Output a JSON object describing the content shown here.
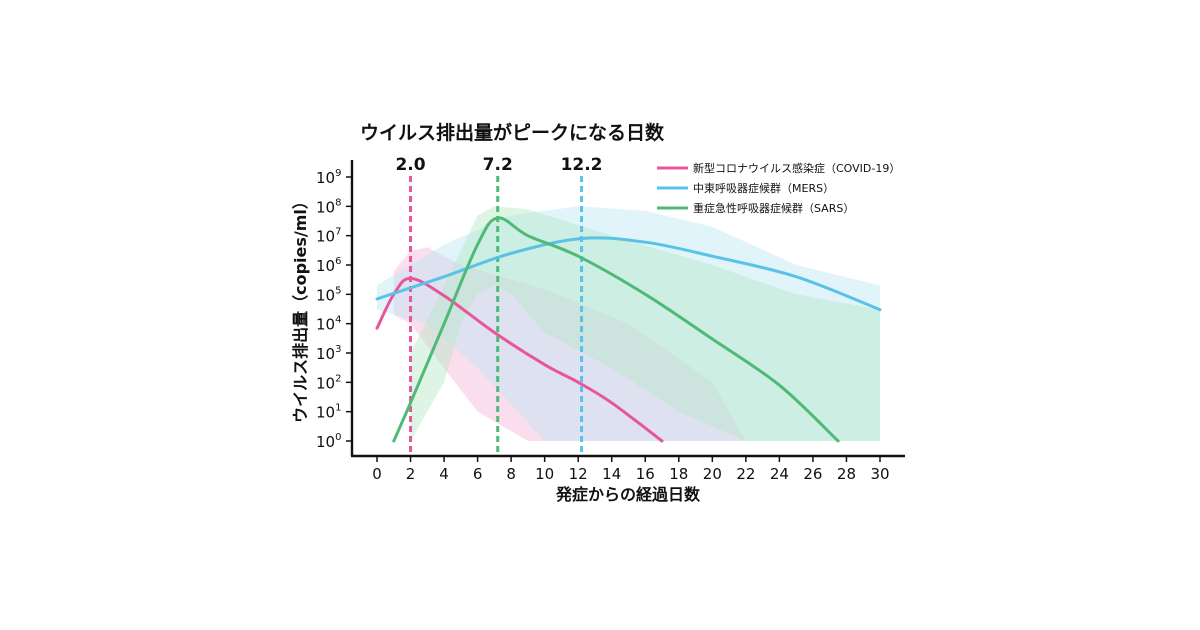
{
  "chart_data": {
    "type": "line",
    "title": "ウイルス排出量がピークになる日数",
    "xlabel": "発症からの経過日数",
    "ylabel": "ウイルス排出量（copies/ml）",
    "x_ticks": [
      "0",
      "2",
      "4",
      "6",
      "8",
      "10",
      "12",
      "14",
      "16",
      "18",
      "20",
      "22",
      "24",
      "26",
      "28",
      "30"
    ],
    "xlim": [
      0,
      30
    ],
    "y_scale": "log10",
    "ylim": [
      1,
      1000000000
    ],
    "y_ticks": [
      {
        "base": "10",
        "exp": "0"
      },
      {
        "base": "10",
        "exp": "1"
      },
      {
        "base": "10",
        "exp": "2"
      },
      {
        "base": "10",
        "exp": "3"
      },
      {
        "base": "10",
        "exp": "4"
      },
      {
        "base": "10",
        "exp": "5"
      },
      {
        "base": "10",
        "exp": "6"
      },
      {
        "base": "10",
        "exp": "7"
      },
      {
        "base": "10",
        "exp": "8"
      },
      {
        "base": "10",
        "exp": "9"
      }
    ],
    "legend_position": "top-right",
    "grid": false,
    "peaks": [
      {
        "x": 2.0,
        "label": "2.0",
        "color": "#e8559c"
      },
      {
        "x": 7.2,
        "label": "7.2",
        "color": "#4fba78"
      },
      {
        "x": 12.2,
        "label": "12.2",
        "color": "#5bc2e7"
      }
    ],
    "series": [
      {
        "name": "新型コロナウイルス感染症（COVID-19）",
        "color": "#e8559c",
        "band_color": "#f3b6d6",
        "points": [
          [
            0,
            7000
          ],
          [
            1,
            100000
          ],
          [
            2,
            350000
          ],
          [
            4,
            90000
          ],
          [
            7,
            5000
          ],
          [
            10,
            400
          ],
          [
            12,
            100
          ],
          [
            14,
            20
          ],
          [
            17,
            1
          ]
        ],
        "band_upper": [
          [
            1,
            600000
          ],
          [
            2,
            3000000
          ],
          [
            3,
            4000000
          ],
          [
            5,
            1000000
          ],
          [
            10,
            150000
          ],
          [
            15,
            10000
          ],
          [
            20,
            100
          ],
          [
            22,
            1
          ]
        ],
        "band_lower": [
          [
            22,
            1
          ],
          [
            20,
            1
          ],
          [
            16,
            1
          ],
          [
            12,
            1
          ],
          [
            9,
            1
          ],
          [
            6,
            10
          ],
          [
            4,
            300
          ],
          [
            2,
            10000
          ],
          [
            1,
            20000
          ]
        ]
      },
      {
        "name": "中東呼吸器症候群（MERS）",
        "color": "#5bc2e7",
        "band_color": "#bde6f5",
        "points": [
          [
            0,
            70000
          ],
          [
            4,
            400000
          ],
          [
            8,
            2500000
          ],
          [
            12.2,
            8000000
          ],
          [
            16,
            6000000
          ],
          [
            20,
            2000000
          ],
          [
            25,
            400000
          ],
          [
            30,
            30000
          ]
        ],
        "band_upper": [
          [
            0,
            200000
          ],
          [
            4,
            5000000
          ],
          [
            8,
            50000000
          ],
          [
            12,
            100000000
          ],
          [
            16,
            70000000
          ],
          [
            20,
            20000000
          ],
          [
            25,
            1000000
          ],
          [
            30,
            200000
          ]
        ],
        "band_lower": [
          [
            30,
            1
          ],
          [
            24,
            1
          ],
          [
            18,
            1
          ],
          [
            12,
            1
          ],
          [
            10,
            1
          ],
          [
            6,
            300
          ],
          [
            3,
            10000
          ],
          [
            0,
            30000
          ]
        ]
      },
      {
        "name": "重症急性呼吸器症候群（SARS）",
        "color": "#4fba78",
        "band_color": "#b5e6c6",
        "points": [
          [
            1,
            1
          ],
          [
            2,
            20
          ],
          [
            4,
            10000
          ],
          [
            6,
            5000000
          ],
          [
            7.2,
            40000000
          ],
          [
            9,
            10000000
          ],
          [
            12,
            2000000
          ],
          [
            16,
            100000
          ],
          [
            20,
            3000
          ],
          [
            24,
            80
          ],
          [
            27.5,
            1
          ]
        ],
        "band_upper": [
          [
            2,
            1000
          ],
          [
            4,
            200000
          ],
          [
            6,
            50000000
          ],
          [
            7,
            100000000
          ],
          [
            9,
            80000000
          ],
          [
            14,
            10000000
          ],
          [
            20,
            1000000
          ],
          [
            25,
            100000
          ],
          [
            30,
            30000
          ]
        ],
        "band_lower": [
          [
            30,
            1
          ],
          [
            26,
            1
          ],
          [
            22,
            1
          ],
          [
            18,
            10
          ],
          [
            14,
            300
          ],
          [
            10,
            5000
          ],
          [
            8,
            100000
          ],
          [
            7,
            200000
          ],
          [
            6,
            100000
          ],
          [
            5,
            10000
          ],
          [
            4,
            100
          ],
          [
            3,
            10
          ],
          [
            2,
            1
          ]
        ]
      }
    ]
  }
}
